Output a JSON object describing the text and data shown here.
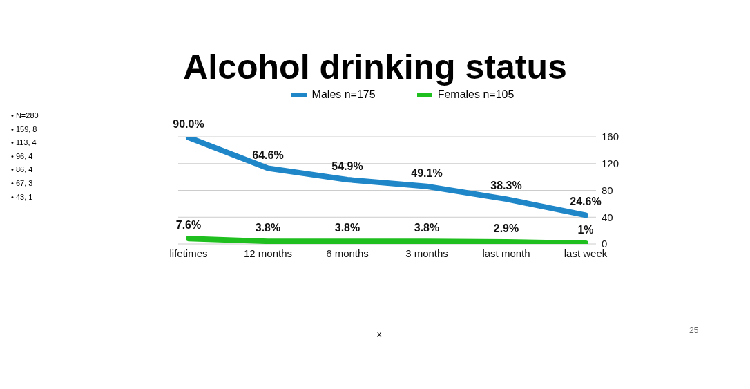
{
  "chart_data": {
    "type": "line",
    "title": "Alcohol drinking status",
    "categories": [
      "lifetimes",
      "12 months",
      "6 months",
      "3 months",
      "last month",
      "last week"
    ],
    "series": [
      {
        "name": "Males n=175",
        "color": "#1f86c8",
        "values": [
          159,
          113,
          96,
          86,
          67,
          43
        ]
      },
      {
        "name": "Females n=105",
        "color": "#1fbf1f",
        "values": [
          8,
          4,
          4,
          4,
          3,
          1
        ]
      }
    ],
    "ylim": [
      0,
      160
    ],
    "yticks": [
      0,
      40,
      80,
      120,
      160
    ],
    "grid": "y",
    "legend": "top",
    "marker": "none",
    "annotations": [
      {
        "text": "90.0%",
        "x": "lifetimes",
        "y": 159
      },
      {
        "text": "64.6%",
        "x": "12 months",
        "y": 113
      },
      {
        "text": "54.9%",
        "x": "6 months",
        "y": 96
      },
      {
        "text": "49.1%",
        "x": "3 months",
        "y": 86
      },
      {
        "text": "38.3%",
        "x": "last month",
        "y": 67
      },
      {
        "text": "24.6%",
        "x": "last week",
        "y": 43
      },
      {
        "text": "7.6%",
        "x": "lifetimes",
        "y": 8
      },
      {
        "text": "3.8%",
        "x": "12 months",
        "y": 4
      },
      {
        "text": "3.8%",
        "x": "6 months",
        "y": 4
      },
      {
        "text": "3.8%",
        "x": "3 months",
        "y": 4
      },
      {
        "text": "2.9%",
        "x": "last month",
        "y": 3
      },
      {
        "text": "1%",
        "x": "last week",
        "y": 1
      },
      "• N=280",
      "• 159, 8",
      "• 113, 4",
      "• 96, 4",
      "• 86, 4",
      "• 67, 3",
      "• 43, 1",
      "25",
      "x"
    ]
  }
}
